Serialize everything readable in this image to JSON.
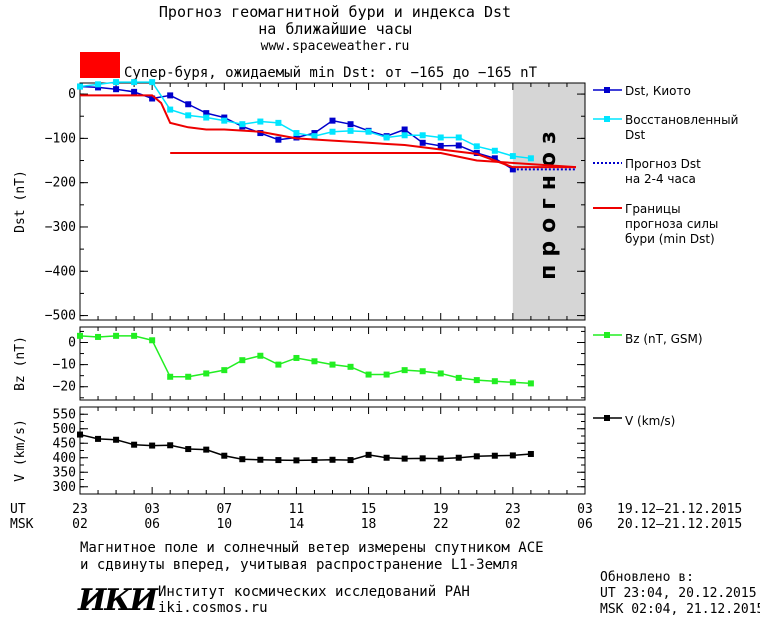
{
  "header": {
    "title_line1": "Прогноз геомагнитной бури и индекса Dst",
    "title_line2": "на ближайшие часы",
    "site": "www.spaceweather.ru",
    "storm_label": "Супер-буря, ожидаемый min Dst: от −165 до −165 nT",
    "storm_color": "#ff0000"
  },
  "colors": {
    "dst": "#0000cc",
    "restored": "#00e5ff",
    "forecast_bounds": "#ee0000",
    "bz": "#22ee22",
    "v": "#000000",
    "forecast_shade": "#d6d6d6"
  },
  "x_axis": {
    "ut_label": "UT",
    "msk_label": "MSK",
    "ut_ticks": [
      "23",
      "03",
      "07",
      "11",
      "15",
      "19",
      "23",
      "03"
    ],
    "msk_ticks": [
      "02",
      "06",
      "10",
      "14",
      "18",
      "22",
      "02",
      "06"
    ],
    "ut_range": "19.12–21.12.2015",
    "msk_range": "20.12–21.12.2015"
  },
  "chart_data": [
    {
      "type": "line",
      "ylabel": "Dst (nT)",
      "ylim": [
        -510,
        25
      ],
      "yticks": [
        0,
        -100,
        -200,
        -300,
        -400,
        -500
      ],
      "xlim": [
        0,
        28
      ],
      "forecast_band": {
        "x": [
          24,
          28
        ],
        "label": "прогноз"
      },
      "series": [
        {
          "name": "Dst, Киото",
          "color": "#0000cc",
          "marker": "square",
          "x": [
            0,
            1,
            2,
            3,
            4,
            5,
            6,
            7,
            8,
            9,
            10,
            11,
            12,
            13,
            14,
            15,
            16,
            17,
            18,
            19,
            20,
            21,
            22,
            23,
            24
          ],
          "y": [
            17,
            15,
            11,
            5,
            -10,
            -3,
            -23,
            -43,
            -53,
            -73,
            -88,
            -103,
            -98,
            -88,
            -60,
            -68,
            -83,
            -95,
            -80,
            -110,
            -117,
            -116,
            -133,
            -145,
            -170
          ]
        },
        {
          "name": "Восстановленный Dst",
          "color": "#00e5ff",
          "marker": "square",
          "x": [
            0,
            1,
            2,
            3,
            4,
            5,
            6,
            7,
            8,
            9,
            10,
            11,
            12,
            13,
            14,
            15,
            16,
            17,
            18,
            19,
            20,
            21,
            22,
            23,
            24,
            25
          ],
          "y": [
            17,
            22,
            27,
            27,
            27,
            -35,
            -48,
            -53,
            -60,
            -68,
            -62,
            -65,
            -88,
            -95,
            -85,
            -83,
            -85,
            -98,
            -93,
            -93,
            -98,
            -98,
            -118,
            -128,
            -140,
            -145
          ]
        },
        {
          "name": "Прогноз Dst на 2-4 часа",
          "color": "#0000cc",
          "style": "dotted",
          "x": [
            24,
            27.5
          ],
          "y": [
            -170,
            -170
          ]
        },
        {
          "name": "Границы прогноза силы бури (min Dst)",
          "color": "#ee0000",
          "style": "solid",
          "segments": [
            {
              "x": [
                0,
                4,
                4.5,
                5,
                6,
                7,
                8,
                10,
                12,
                14,
                16,
                18,
                20,
                22,
                24,
                27.5
              ],
              "y": [
                -3,
                -3,
                -20,
                -65,
                -75,
                -80,
                -80,
                -85,
                -100,
                -105,
                -110,
                -115,
                -125,
                -135,
                -165,
                -165
              ]
            },
            {
              "x": [
                5,
                20,
                22,
                27.5
              ],
              "y": [
                -133,
                -133,
                -150,
                -165
              ]
            }
          ]
        }
      ]
    },
    {
      "type": "line",
      "ylabel": "Bz (nT)",
      "ylim": [
        -26,
        7
      ],
      "yticks": [
        0,
        -10,
        -20
      ],
      "xlim": [
        0,
        28
      ],
      "series": [
        {
          "name": "Bz (nT, GSM)",
          "color": "#22ee22",
          "marker": "square",
          "x": [
            0,
            1,
            2,
            3,
            4,
            5,
            6,
            7,
            8,
            9,
            10,
            11,
            12,
            13,
            14,
            15,
            16,
            17,
            18,
            19,
            20,
            21,
            22,
            23,
            24,
            25
          ],
          "y": [
            3,
            2.5,
            3,
            3,
            1,
            -15.5,
            -15.5,
            -14,
            -12.5,
            -8,
            -6,
            -10,
            -7,
            -8.5,
            -10,
            -11,
            -14.5,
            -14.5,
            -12.5,
            -13,
            -14,
            -16,
            -17,
            -17.5,
            -18,
            -18.5
          ]
        }
      ]
    },
    {
      "type": "line",
      "ylabel": "V (km/s)",
      "ylim": [
        275,
        575
      ],
      "yticks": [
        300,
        350,
        400,
        450,
        500,
        550
      ],
      "xlim": [
        0,
        28
      ],
      "series": [
        {
          "name": "V (km/s)",
          "color": "#000000",
          "marker": "square",
          "x": [
            0,
            1,
            2,
            3,
            4,
            5,
            6,
            7,
            8,
            9,
            10,
            11,
            12,
            13,
            14,
            15,
            16,
            17,
            18,
            19,
            20,
            21,
            22,
            23,
            24,
            25
          ],
          "y": [
            480,
            465,
            462,
            445,
            442,
            443,
            430,
            428,
            407,
            395,
            393,
            392,
            391,
            392,
            393,
            392,
            410,
            400,
            397,
            398,
            397,
            400,
            405,
            407,
            408,
            413
          ]
        }
      ]
    }
  ],
  "footer": {
    "note_line1": "Магнитное поле и солнечный ветер измерены спутником ACE",
    "note_line2": "и сдвинуты вперед, учитывая распространение L1-Земля",
    "logo_text": "ИКИ",
    "institute": "Институт космических исследований РАН",
    "institute_site": "iki.cosmos.ru",
    "updated_label": "Обновлено в:",
    "updated_ut": "UT  23:04, 20.12.2015",
    "updated_msk": "MSK 02:04, 21.12.2015"
  }
}
